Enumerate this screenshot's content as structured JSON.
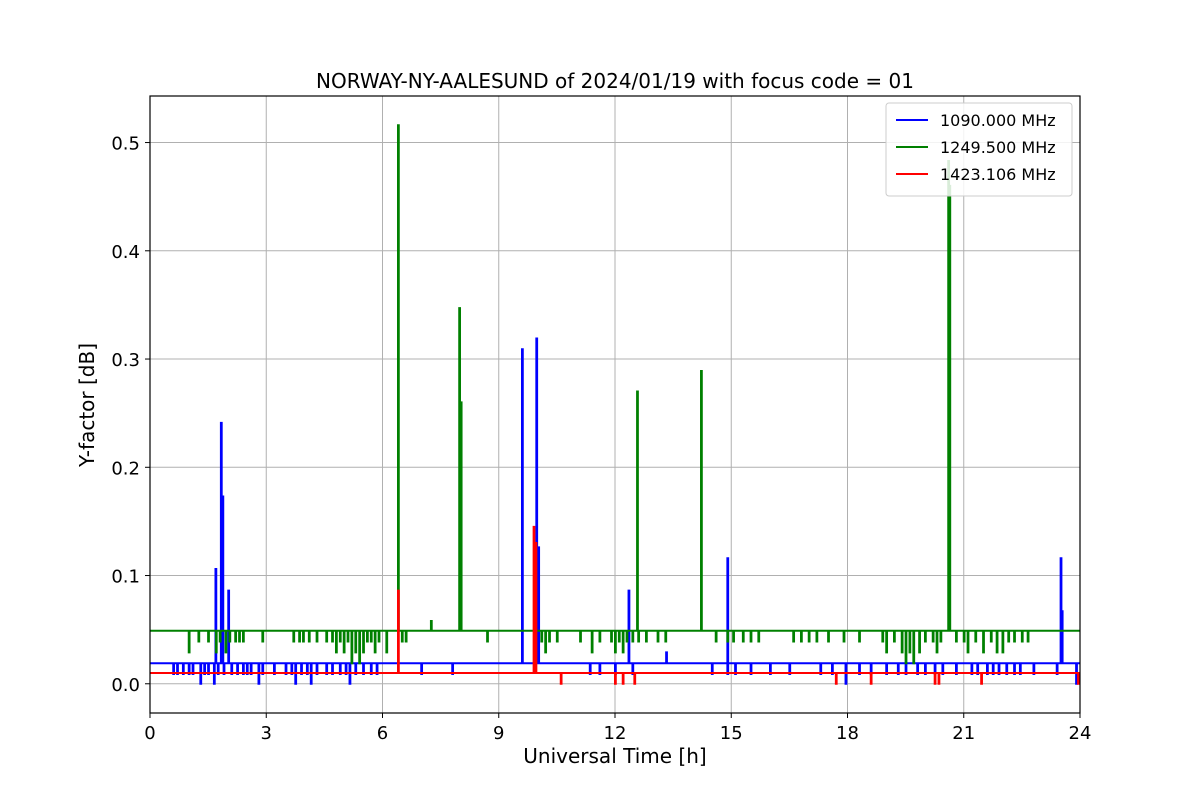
{
  "chart_data": {
    "type": "line",
    "title": "NORWAY-NY-AALESUND of 2024/01/19 with focus code = 01",
    "xlabel": "Universal Time [h]",
    "ylabel": "Y-factor [dB]",
    "xlim": [
      0,
      24
    ],
    "ylim": [
      -0.027,
      0.543
    ],
    "xticks": [
      0,
      3,
      6,
      9,
      12,
      15,
      18,
      21,
      24
    ],
    "xtick_labels": [
      "0",
      "3",
      "6",
      "9",
      "12",
      "15",
      "18",
      "21",
      "24"
    ],
    "yticks": [
      0.0,
      0.1,
      0.2,
      0.3,
      0.4,
      0.5
    ],
    "ytick_labels": [
      "0.0",
      "0.1",
      "0.2",
      "0.3",
      "0.4",
      "0.5"
    ],
    "grid": true,
    "legend_position": "top-right",
    "series": [
      {
        "name": "1090.000 MHz",
        "color": "#0000ff",
        "baseline": 0.019,
        "spikes": [
          [
            1.69,
            0.106
          ],
          [
            1.83,
            0.241
          ],
          [
            1.87,
            0.173
          ],
          [
            2.02,
            0.086
          ],
          [
            9.6,
            0.309
          ],
          [
            9.97,
            0.319
          ],
          [
            10.02,
            0.126
          ],
          [
            12.35,
            0.086
          ],
          [
            13.32,
            0.029
          ],
          [
            14.9,
            0.116
          ],
          [
            23.5,
            0.116
          ],
          [
            23.53,
            0.067
          ]
        ],
        "dips": [
          [
            0.6,
            0.009
          ],
          [
            0.7,
            0.009
          ],
          [
            0.85,
            0.009
          ],
          [
            1.0,
            0.009
          ],
          [
            1.1,
            0.009
          ],
          [
            1.3,
            0.0
          ],
          [
            1.4,
            0.009
          ],
          [
            1.5,
            0.009
          ],
          [
            1.65,
            0.0
          ],
          [
            1.75,
            0.009
          ],
          [
            1.9,
            0.009
          ],
          [
            2.1,
            0.009
          ],
          [
            2.25,
            0.009
          ],
          [
            2.4,
            0.009
          ],
          [
            2.5,
            0.009
          ],
          [
            2.6,
            0.009
          ],
          [
            2.8,
            0.0
          ],
          [
            2.9,
            0.009
          ],
          [
            3.2,
            0.009
          ],
          [
            3.5,
            0.009
          ],
          [
            3.65,
            0.009
          ],
          [
            3.75,
            0.0
          ],
          [
            3.9,
            0.009
          ],
          [
            4.05,
            0.009
          ],
          [
            4.15,
            0.0
          ],
          [
            4.3,
            0.009
          ],
          [
            4.55,
            0.009
          ],
          [
            4.7,
            0.009
          ],
          [
            4.9,
            0.009
          ],
          [
            5.05,
            0.009
          ],
          [
            5.15,
            0.0
          ],
          [
            5.3,
            0.009
          ],
          [
            5.5,
            0.009
          ],
          [
            5.7,
            0.009
          ],
          [
            5.85,
            0.009
          ],
          [
            7.0,
            0.009
          ],
          [
            7.8,
            0.009
          ],
          [
            11.35,
            0.009
          ],
          [
            11.6,
            0.009
          ],
          [
            12.0,
            0.009
          ],
          [
            12.45,
            0.009
          ],
          [
            14.5,
            0.009
          ],
          [
            14.9,
            0.009
          ],
          [
            15.1,
            0.009
          ],
          [
            15.5,
            0.009
          ],
          [
            16.0,
            0.009
          ],
          [
            16.5,
            0.009
          ],
          [
            17.3,
            0.009
          ],
          [
            17.6,
            0.009
          ],
          [
            17.95,
            0.0
          ],
          [
            18.3,
            0.009
          ],
          [
            18.6,
            0.009
          ],
          [
            19.0,
            0.009
          ],
          [
            19.3,
            0.009
          ],
          [
            19.5,
            0.009
          ],
          [
            19.8,
            0.009
          ],
          [
            20.0,
            0.009
          ],
          [
            20.25,
            0.009
          ],
          [
            20.45,
            0.009
          ],
          [
            20.8,
            0.009
          ],
          [
            21.2,
            0.009
          ],
          [
            21.35,
            0.009
          ],
          [
            21.6,
            0.009
          ],
          [
            21.75,
            0.009
          ],
          [
            21.9,
            0.009
          ],
          [
            22.1,
            0.009
          ],
          [
            22.3,
            0.009
          ],
          [
            22.45,
            0.009
          ],
          [
            22.8,
            0.009
          ],
          [
            23.4,
            0.009
          ],
          [
            23.9,
            0.0
          ]
        ]
      },
      {
        "name": "1249.500 MHz",
        "color": "#008000",
        "baseline": 0.049,
        "spikes": [
          [
            6.4,
            0.516
          ],
          [
            7.25,
            0.058
          ],
          [
            7.98,
            0.347
          ],
          [
            8.02,
            0.26
          ],
          [
            12.57,
            0.27
          ],
          [
            14.22,
            0.289
          ],
          [
            20.6,
            0.483
          ],
          [
            20.63,
            0.46
          ]
        ],
        "dips": [
          [
            1.0,
            0.029
          ],
          [
            1.25,
            0.039
          ],
          [
            1.5,
            0.039
          ],
          [
            1.7,
            0.029
          ],
          [
            1.8,
            0.039
          ],
          [
            1.95,
            0.029
          ],
          [
            2.05,
            0.039
          ],
          [
            2.2,
            0.039
          ],
          [
            2.3,
            0.039
          ],
          [
            2.4,
            0.039
          ],
          [
            2.9,
            0.039
          ],
          [
            3.7,
            0.039
          ],
          [
            3.85,
            0.039
          ],
          [
            3.95,
            0.039
          ],
          [
            4.1,
            0.039
          ],
          [
            4.3,
            0.039
          ],
          [
            4.55,
            0.039
          ],
          [
            4.7,
            0.039
          ],
          [
            4.8,
            0.029
          ],
          [
            4.9,
            0.039
          ],
          [
            5.0,
            0.029
          ],
          [
            5.1,
            0.039
          ],
          [
            5.2,
            0.019
          ],
          [
            5.3,
            0.029
          ],
          [
            5.4,
            0.019
          ],
          [
            5.5,
            0.029
          ],
          [
            5.6,
            0.039
          ],
          [
            5.7,
            0.039
          ],
          [
            5.8,
            0.029
          ],
          [
            5.9,
            0.039
          ],
          [
            6.1,
            0.029
          ],
          [
            6.5,
            0.039
          ],
          [
            6.6,
            0.039
          ],
          [
            8.7,
            0.039
          ],
          [
            10.1,
            0.039
          ],
          [
            10.2,
            0.029
          ],
          [
            10.3,
            0.039
          ],
          [
            10.5,
            0.039
          ],
          [
            11.1,
            0.039
          ],
          [
            11.4,
            0.029
          ],
          [
            11.6,
            0.039
          ],
          [
            11.9,
            0.039
          ],
          [
            12.0,
            0.029
          ],
          [
            12.1,
            0.039
          ],
          [
            12.2,
            0.029
          ],
          [
            12.3,
            0.039
          ],
          [
            12.45,
            0.039
          ],
          [
            12.6,
            0.039
          ],
          [
            12.8,
            0.039
          ],
          [
            13.1,
            0.039
          ],
          [
            13.3,
            0.039
          ],
          [
            14.6,
            0.039
          ],
          [
            14.9,
            0.039
          ],
          [
            15.05,
            0.039
          ],
          [
            15.3,
            0.039
          ],
          [
            15.5,
            0.039
          ],
          [
            15.7,
            0.039
          ],
          [
            16.6,
            0.039
          ],
          [
            16.8,
            0.039
          ],
          [
            17.0,
            0.039
          ],
          [
            17.2,
            0.039
          ],
          [
            17.5,
            0.039
          ],
          [
            17.9,
            0.039
          ],
          [
            18.3,
            0.039
          ],
          [
            18.9,
            0.039
          ],
          [
            19.0,
            0.029
          ],
          [
            19.2,
            0.039
          ],
          [
            19.4,
            0.029
          ],
          [
            19.5,
            0.019
          ],
          [
            19.6,
            0.029
          ],
          [
            19.7,
            0.019
          ],
          [
            19.85,
            0.029
          ],
          [
            20.0,
            0.039
          ],
          [
            20.2,
            0.039
          ],
          [
            20.3,
            0.029
          ],
          [
            20.4,
            0.039
          ],
          [
            20.8,
            0.039
          ],
          [
            21.0,
            0.039
          ],
          [
            21.1,
            0.029
          ],
          [
            21.3,
            0.039
          ],
          [
            21.5,
            0.029
          ],
          [
            21.7,
            0.039
          ],
          [
            21.85,
            0.029
          ],
          [
            22.0,
            0.029
          ],
          [
            22.15,
            0.039
          ],
          [
            22.3,
            0.039
          ],
          [
            22.5,
            0.039
          ],
          [
            22.65,
            0.039
          ]
        ]
      },
      {
        "name": "1423.106 MHz",
        "color": "#ff0000",
        "baseline": 0.01,
        "spikes": [
          [
            6.4,
            0.086
          ],
          [
            9.9,
            0.145
          ],
          [
            9.95,
            0.13
          ]
        ],
        "dips": [
          [
            10.6,
            0.0
          ],
          [
            12.0,
            0.0
          ],
          [
            12.2,
            0.0
          ],
          [
            12.5,
            0.0
          ],
          [
            17.7,
            0.0
          ],
          [
            18.6,
            0.0
          ],
          [
            20.25,
            0.0
          ],
          [
            20.35,
            0.0
          ],
          [
            21.45,
            0.0
          ],
          [
            23.95,
            0.0
          ]
        ]
      }
    ]
  }
}
